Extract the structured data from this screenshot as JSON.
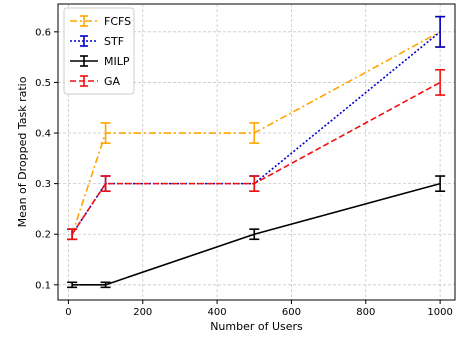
{
  "chart_data": {
    "type": "line",
    "title": "",
    "xlabel": "Number of Users",
    "ylabel": "Mean of Dropped Task ratio",
    "xlim": [
      -28,
      1040
    ],
    "ylim": [
      0.07,
      0.655
    ],
    "xticks": [
      0,
      200,
      400,
      600,
      800,
      1000
    ],
    "yticks": [
      0.1,
      0.2,
      0.3,
      0.4,
      0.5,
      0.6
    ],
    "xtick_labels": [
      "0",
      "200",
      "400",
      "600",
      "800",
      "1000"
    ],
    "ytick_labels": [
      "0.1",
      "0.2",
      "0.3",
      "0.4",
      "0.5",
      "0.6"
    ],
    "grid": true,
    "legend_position": "top-left",
    "x": [
      10,
      100,
      500,
      1000
    ],
    "series": [
      {
        "name": "FCFS",
        "color": "#FFA500",
        "dash": "dashdot",
        "values": [
          0.2,
          0.4,
          0.4,
          0.6
        ],
        "errors": [
          0.01,
          0.02,
          0.02,
          0.03
        ]
      },
      {
        "name": "STF",
        "color": "#0000CC",
        "dash": "dotted",
        "values": [
          0.2,
          0.3,
          0.3,
          0.6
        ],
        "errors": [
          0.01,
          0.015,
          0.015,
          0.03
        ]
      },
      {
        "name": "MILP",
        "color": "#000000",
        "dash": "solid",
        "values": [
          0.1,
          0.1,
          0.2,
          0.3
        ],
        "errors": [
          0.005,
          0.005,
          0.01,
          0.015
        ]
      },
      {
        "name": "GA",
        "color": "#EE1111",
        "dash": "dashed",
        "values": [
          0.2,
          0.3,
          0.3,
          0.5
        ],
        "errors": [
          0.01,
          0.015,
          0.015,
          0.025
        ]
      }
    ]
  }
}
